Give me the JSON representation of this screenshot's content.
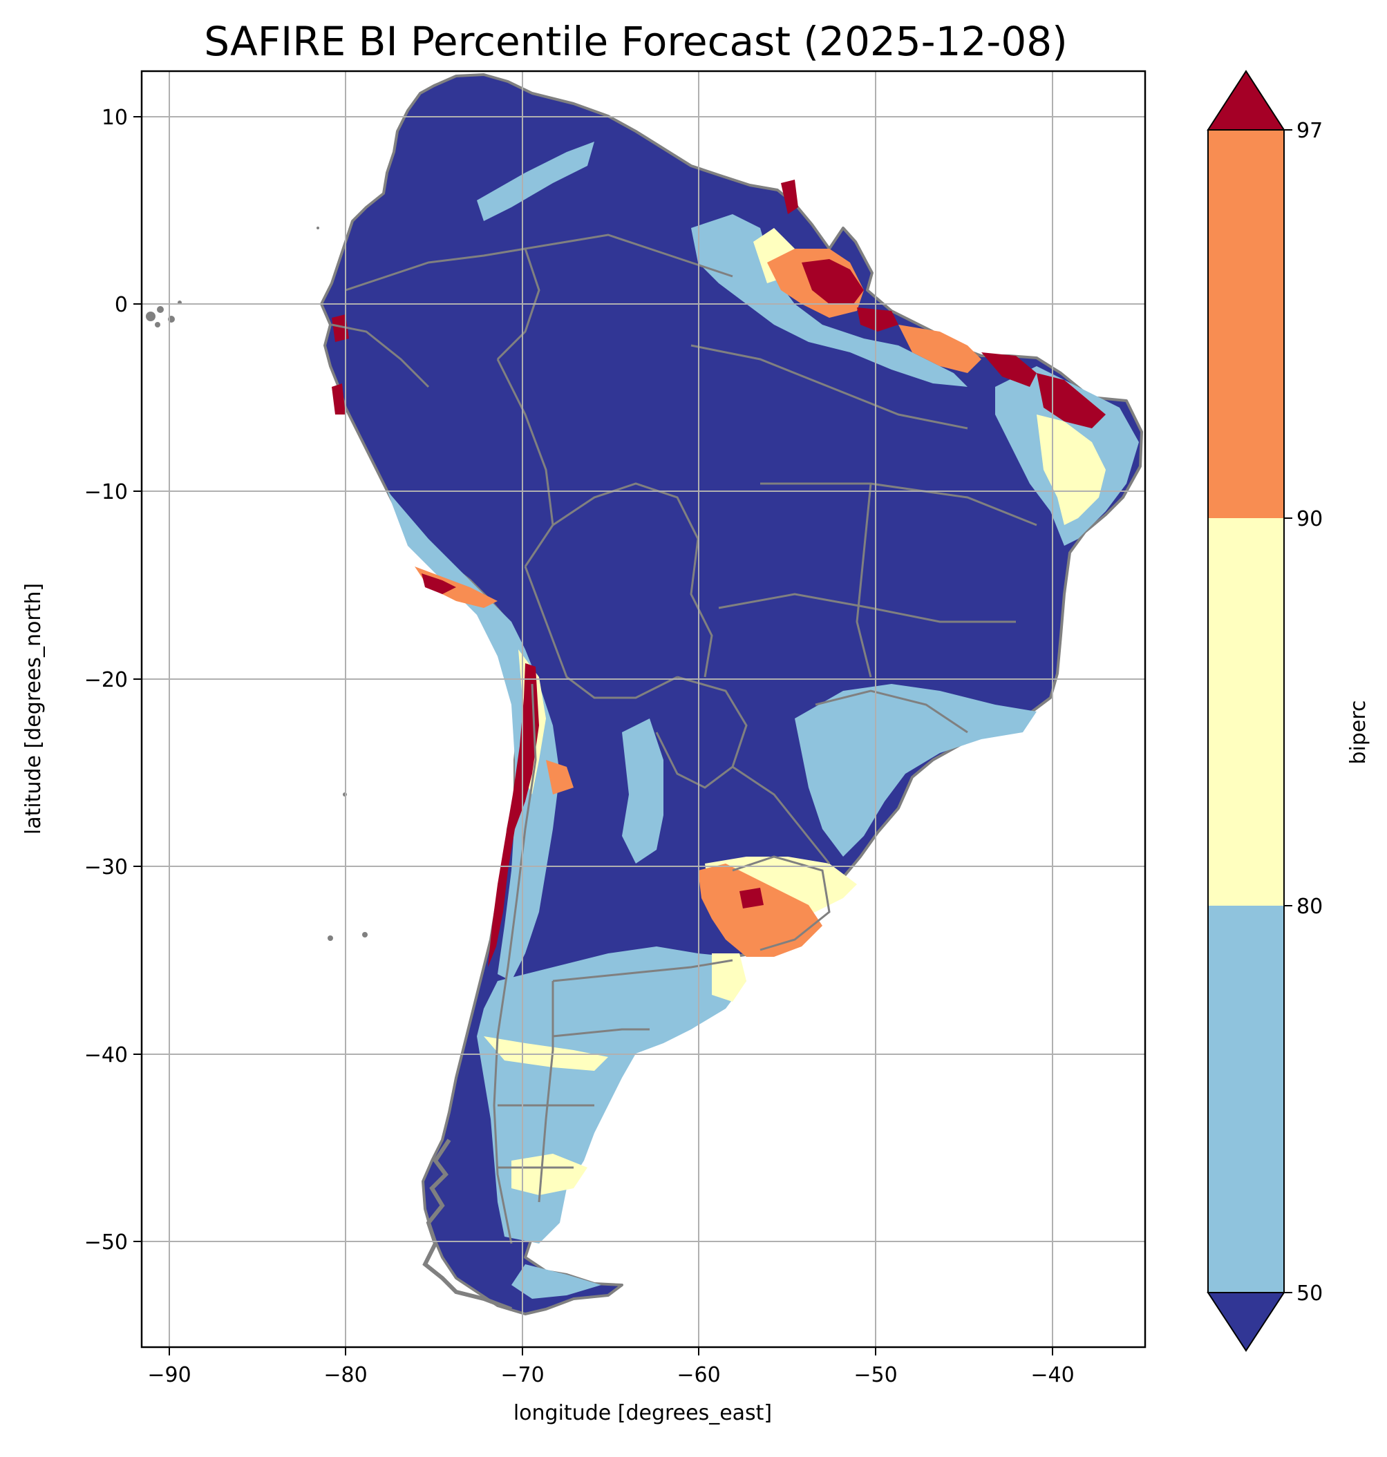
{
  "title": "SAFIRE BI Percentile Forecast (2025-12-08)",
  "map": {
    "xlabel": "longitude [degrees_east]",
    "ylabel": "latitude [degrees_north]",
    "xlim": [
      -91.6,
      -35.0
    ],
    "ylim": [
      -55.7,
      12.4
    ],
    "xticks": [
      -90,
      -80,
      -70,
      -60,
      -50,
      -40
    ],
    "yticks": [
      10,
      0,
      -10,
      -20,
      -30,
      -40,
      -50
    ],
    "grid": true,
    "land_outline_color": "#808080",
    "dominant_class_color": "#313695"
  },
  "colorbar": {
    "label": "biperc",
    "ticks": [
      50,
      80,
      90,
      97
    ],
    "extend": "both",
    "classes": [
      {
        "range": "<50",
        "color": "#313695"
      },
      {
        "range": "50-80",
        "color": "#8fc3dd"
      },
      {
        "range": "80-90",
        "color": "#ffffbf"
      },
      {
        "range": "90-97",
        "color": "#f88d52"
      },
      {
        "range": ">97",
        "color": "#a50026"
      }
    ]
  }
}
